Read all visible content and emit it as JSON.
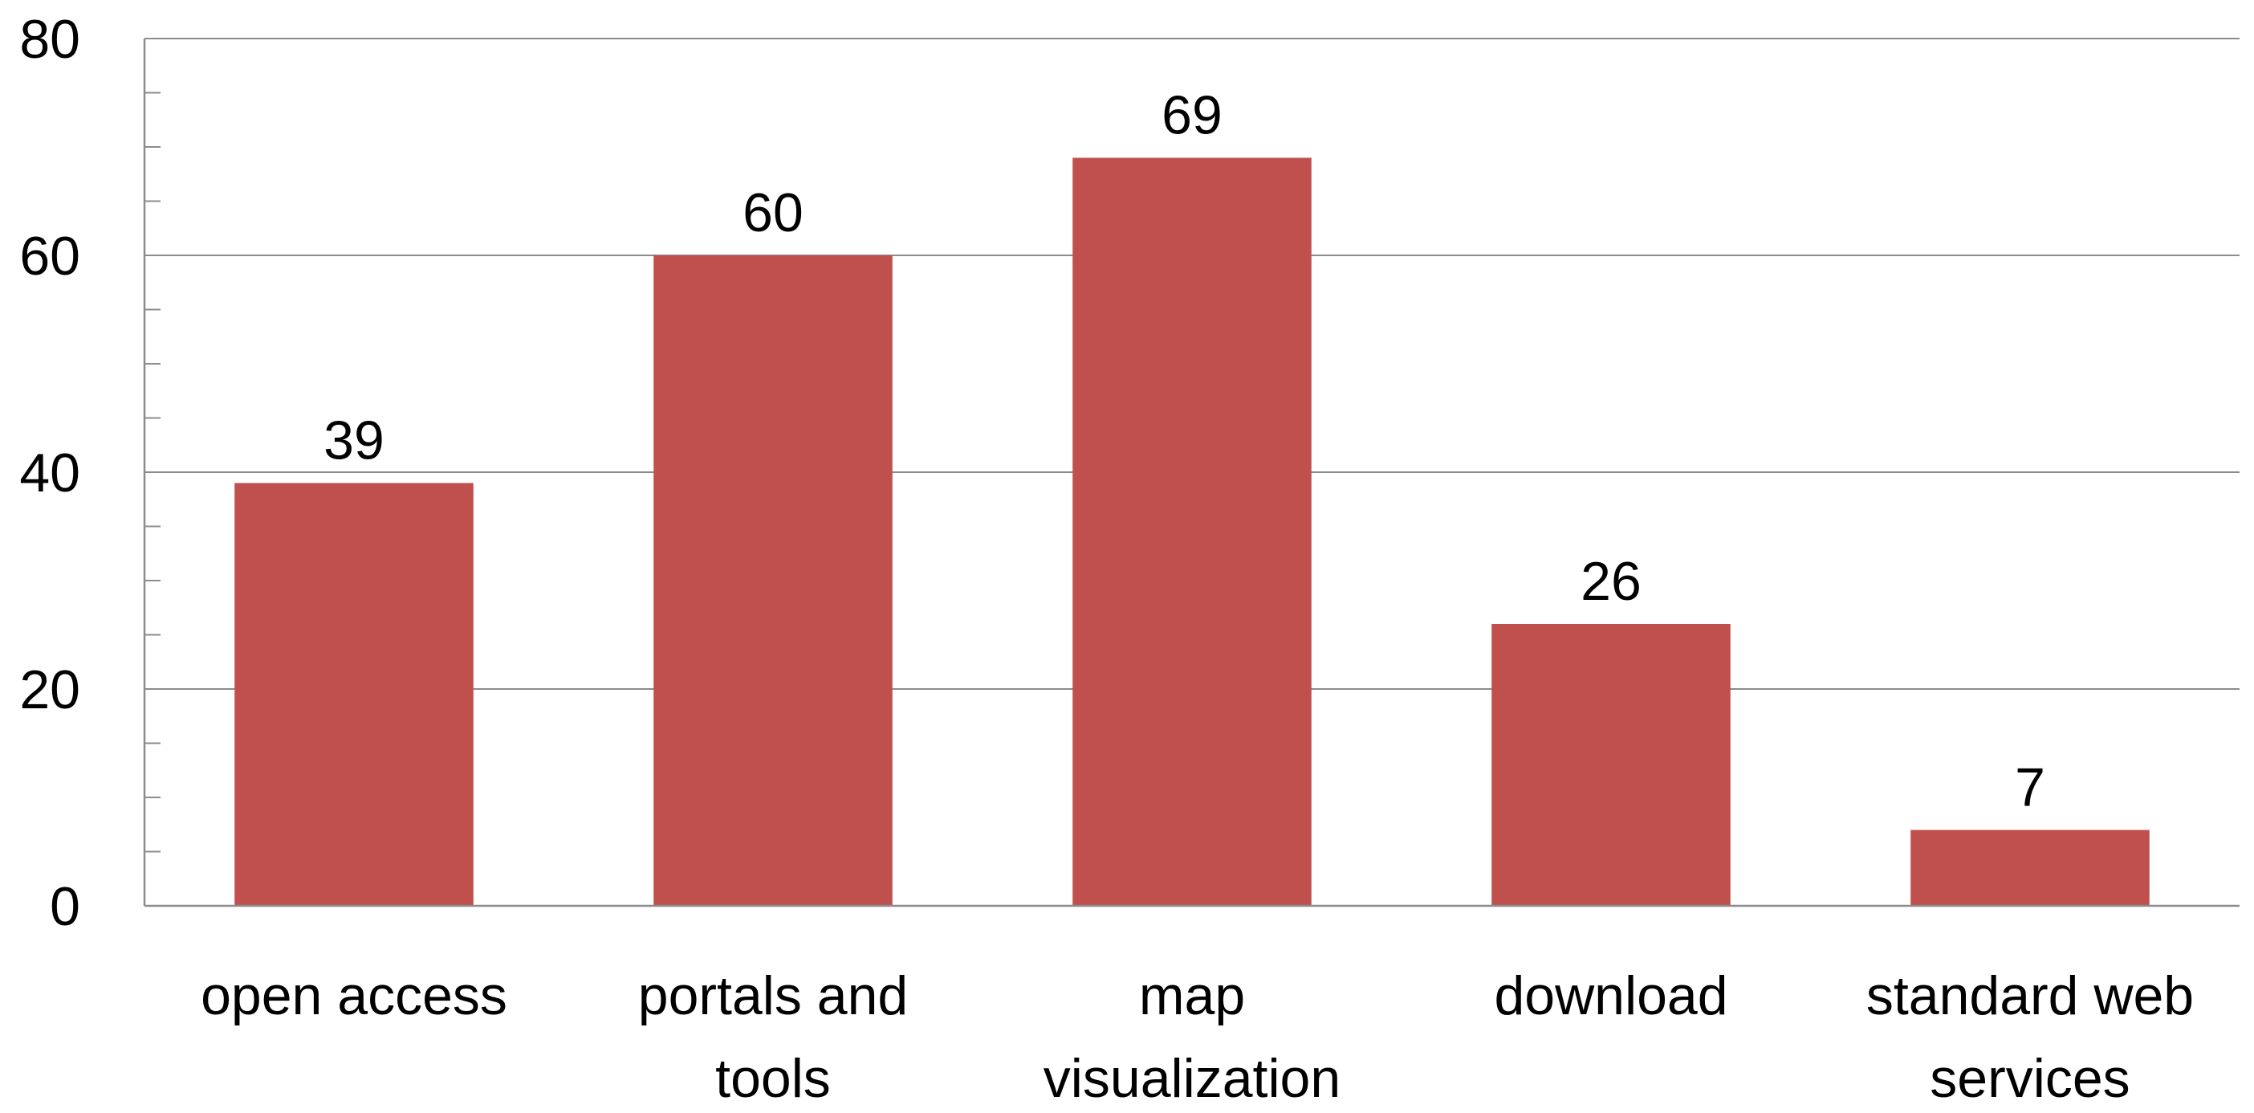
{
  "chart_data": {
    "type": "bar",
    "categories": [
      [
        "open access"
      ],
      [
        "portals and",
        "tools"
      ],
      [
        "map",
        "visualization"
      ],
      [
        "download"
      ],
      [
        "standard web",
        "services"
      ]
    ],
    "values": [
      39,
      60,
      69,
      26,
      7
    ],
    "data_labels": [
      "39",
      "60",
      "69",
      "26",
      "7"
    ],
    "ylim": [
      0,
      80
    ],
    "y_major_ticks": [
      0,
      20,
      40,
      60,
      80
    ],
    "y_minor_step": 5,
    "grid": true,
    "legend": "none",
    "bar_color": "#C0504D",
    "title": "",
    "xlabel": "",
    "ylabel": ""
  }
}
